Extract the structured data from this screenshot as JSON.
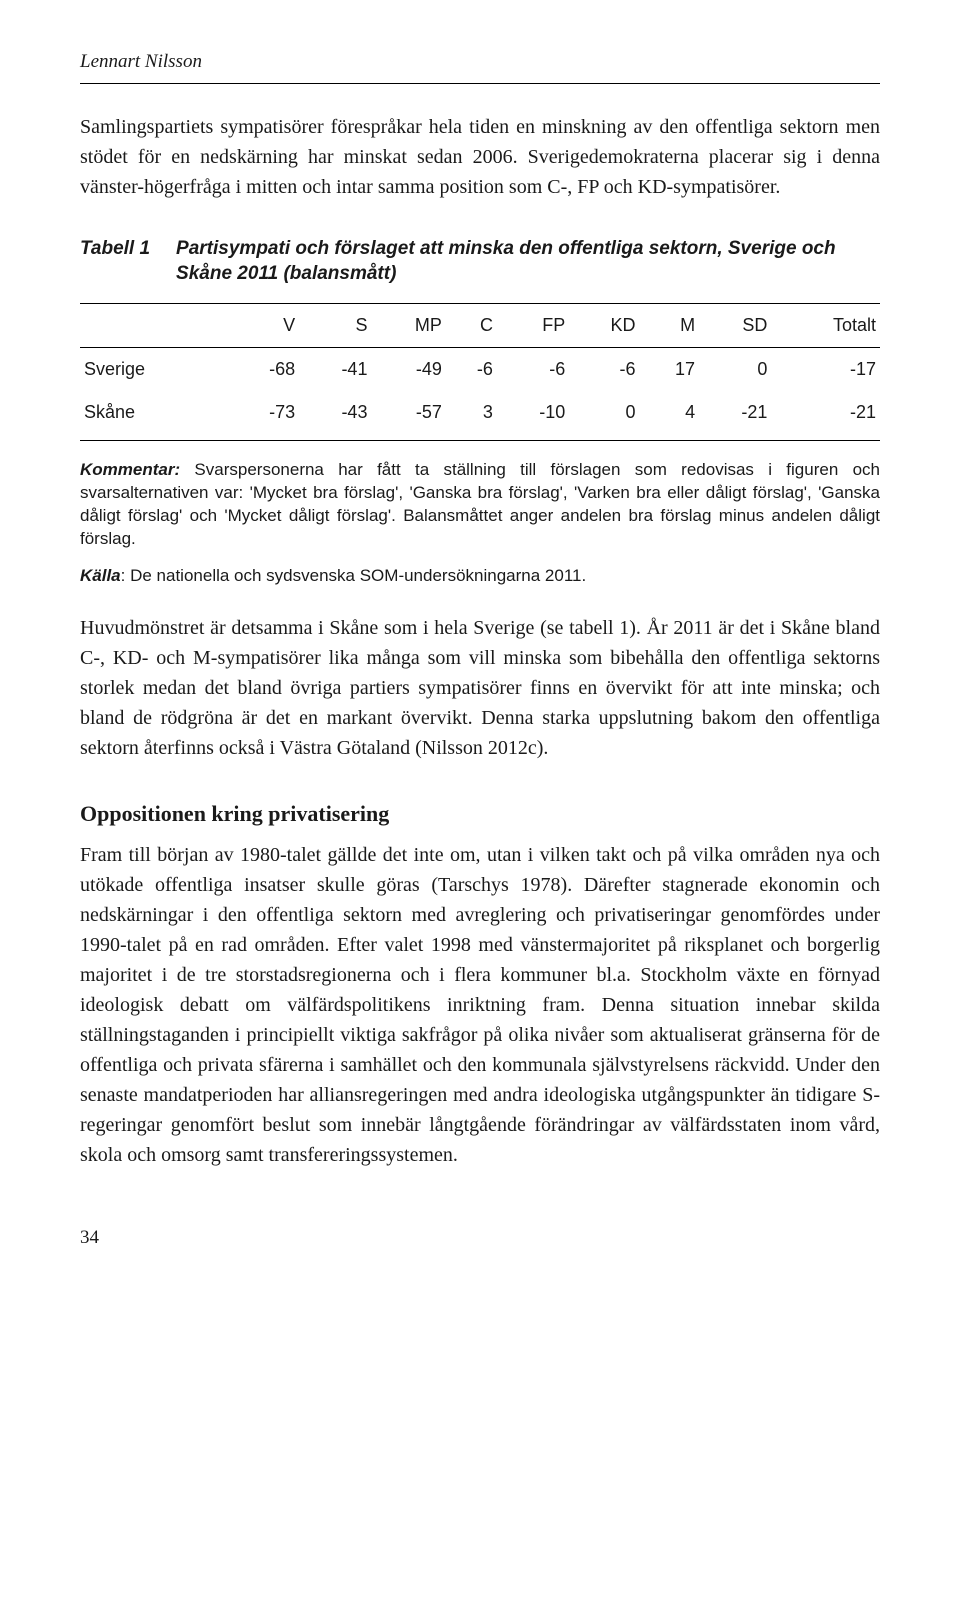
{
  "running_head": "Lennart Nilsson",
  "para1": "Samlingspartiets sympatisörer förespråkar hela tiden en minskning av den offentliga sektorn men stödet för en nedskärning har minskat sedan 2006. Sverigedemokraterna placerar sig i denna vänster-högerfråga i mitten och intar samma position som C-, FP och KD-sympatisörer.",
  "table": {
    "label": "Tabell 1",
    "caption": "Partisympati och förslaget att minska den offentliga sektorn, Sverige och Skåne 2011 (balansmått)",
    "columns": [
      "",
      "V",
      "S",
      "MP",
      "C",
      "FP",
      "KD",
      "M",
      "SD",
      "Totalt"
    ],
    "rows": [
      {
        "label": "Sverige",
        "cells": [
          "-68",
          "-41",
          "-49",
          "-6",
          "-6",
          "-6",
          "17",
          "0",
          "-17"
        ]
      },
      {
        "label": "Skåne",
        "cells": [
          "-73",
          "-43",
          "-57",
          "3",
          "-10",
          "0",
          "4",
          "-21",
          "-21"
        ]
      }
    ]
  },
  "kommentar_lead": "Kommentar:",
  "kommentar_body": " Svarspersonerna har fått ta ställning till förslagen som redovisas i figuren och svarsalternativen var: 'Mycket bra förslag', 'Ganska bra förslag', 'Varken bra eller dåligt förslag', 'Ganska dåligt förslag' och 'Mycket dåligt förslag'. Balansmåttet anger andelen bra förslag minus andelen dåligt förslag.",
  "kalla_lead": "Källa",
  "kalla_body": ": De nationella och sydsvenska SOM-undersökningarna 2011.",
  "para2": "Huvudmönstret är detsamma i Skåne som i hela Sverige (se tabell 1). År 2011 är det i Skåne bland C-, KD- och M-sympatisörer lika många som vill minska som bibehålla den offentliga sektorns storlek medan det bland övriga partiers sympatisörer finns en övervikt för att inte minska; och bland de rödgröna är det en markant övervikt. Denna starka uppslutning bakom den offentliga sektorn återfinns också i Västra Götaland (Nilsson 2012c).",
  "section_heading": "Oppositionen kring privatisering",
  "para3": "Fram till början av 1980-talet gällde det inte om, utan i vilken takt och på vilka områden nya och utökade offentliga insatser skulle göras (Tarschys 1978). Därefter stagnerade ekonomin och nedskärningar i den offentliga sektorn med avreglering och privatiseringar genomfördes under 1990-talet på en rad områden. Efter valet 1998 med vänstermajoritet på riksplanet och borgerlig majoritet i de tre storstadsregionerna och i flera kommuner bl.a. Stockholm växte en förnyad ideologisk debatt om välfärdspolitikens inriktning fram. Denna situation innebar skilda ställningstaganden i principiellt viktiga sakfrågor på olika nivåer som aktualiserat gränserna för de offentliga och privata sfärerna i samhället och den kommunala självstyrelsens räckvidd. Under den senaste mandatperioden har alliansregeringen med andra ideologiska utgångspunkter än tidigare S-regeringar genomfört beslut som innebär långtgående förändringar av välfärdsstaten inom vård, skola och omsorg samt transfereringssystemen.",
  "page_number": "34"
}
